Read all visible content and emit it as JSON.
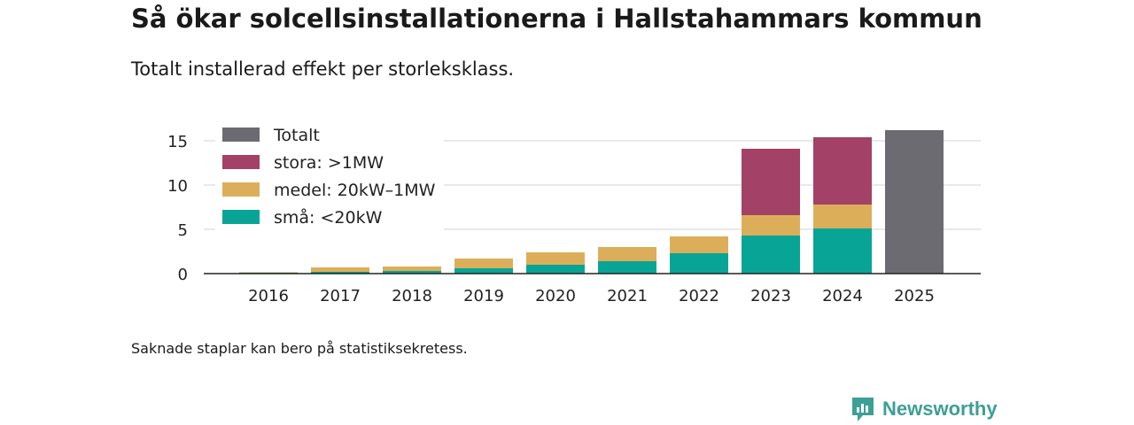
{
  "header": {
    "title": "Så ökar solcellsinstallationerna i Hallstahammars kommun",
    "subtitle": "Totalt installerad effekt per storleksklass."
  },
  "footer": {
    "note": "Saknade staplar kan bero på statistiksekretess.",
    "brand": "Newsworthy"
  },
  "colors": {
    "total": "#6c6b71",
    "large": "#a34167",
    "medium": "#ddae5a",
    "small": "#08a597",
    "grid": "#dcdcdc",
    "axis": "#222222",
    "brand": "#3d9f96"
  },
  "chart_data": {
    "type": "bar",
    "stacked": true,
    "categories": [
      "2016",
      "2017",
      "2018",
      "2019",
      "2020",
      "2021",
      "2022",
      "2023",
      "2024",
      "2025"
    ],
    "series": [
      {
        "name": "små: <20kW",
        "key": "small",
        "values": [
          0.1,
          0.2,
          0.3,
          0.6,
          1.0,
          1.4,
          2.3,
          4.3,
          5.1,
          null
        ]
      },
      {
        "name": "medel: 20kW–1MW",
        "key": "medium",
        "values": [
          0.05,
          0.5,
          0.5,
          1.1,
          1.4,
          1.6,
          1.9,
          2.3,
          2.7,
          null
        ]
      },
      {
        "name": "stora: >1MW",
        "key": "large",
        "values": [
          0,
          0,
          0,
          0,
          0,
          0,
          0,
          7.5,
          7.6,
          null
        ]
      },
      {
        "name": "Totalt",
        "key": "total",
        "values": [
          null,
          null,
          null,
          null,
          null,
          null,
          null,
          null,
          null,
          16.2
        ]
      }
    ],
    "legend_order": [
      "total",
      "large",
      "medium",
      "small"
    ],
    "yticks": [
      0,
      5,
      10,
      15
    ],
    "ylim": [
      0,
      17
    ],
    "legend_position": "top-left",
    "xlabel": "",
    "ylabel": ""
  }
}
